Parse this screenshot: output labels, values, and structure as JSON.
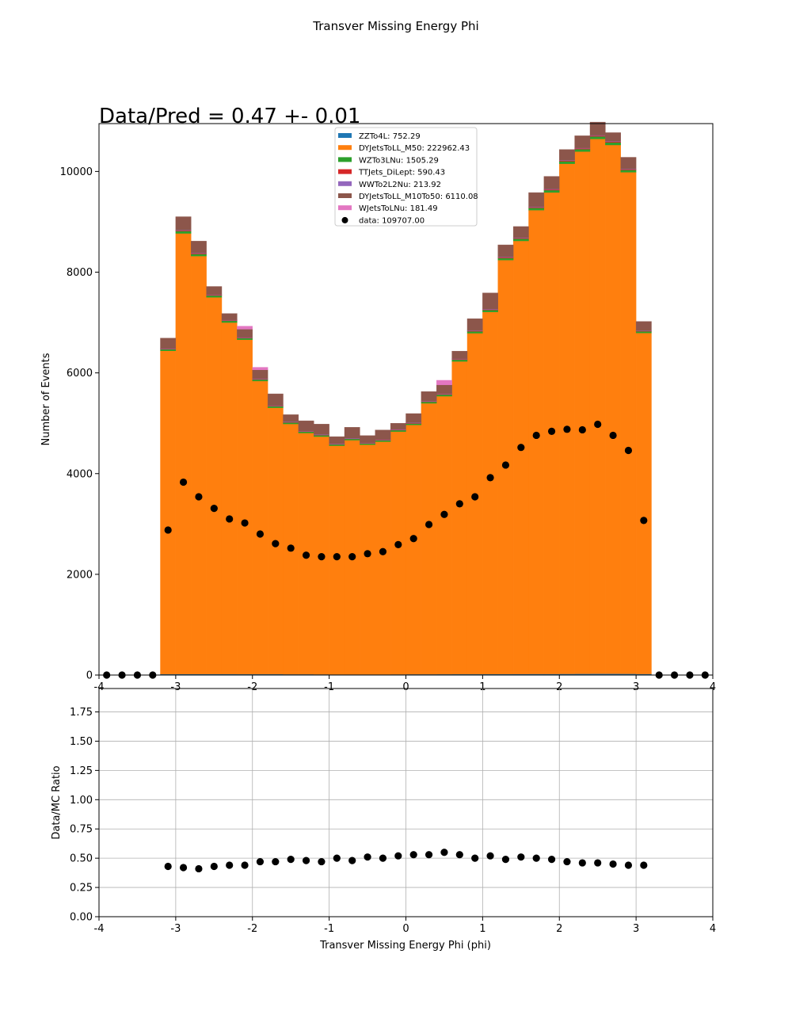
{
  "suptitle": "Transver Missing Energy Phi",
  "colors": {
    "ZZTo4L": "#1f77b4",
    "DYJetsToLL_M50": "#ff7f0e",
    "WZTo3LNu": "#2ca02c",
    "TTJets_DiLept": "#d62728",
    "WWTo2L2Nu": "#9467bd",
    "DYJetsToLL_M10To50": "#8c564b",
    "WJetsToLNu": "#e377c2",
    "data": "#000000",
    "grid": "#b0b0b0"
  },
  "chart_data": [
    {
      "type": "bar",
      "stacked": true,
      "title": "Data/Pred = 0.47 +- 0.01",
      "xlabel": "",
      "ylabel": "Number of Events",
      "xlim": [
        -4,
        4
      ],
      "ylim": [
        0,
        10950
      ],
      "xticks": [
        "-4",
        "-3",
        "-2",
        "-1",
        "0",
        "1",
        "2",
        "3",
        "4"
      ],
      "yticks": [
        "0",
        "2000",
        "4000",
        "6000",
        "8000",
        "10000"
      ],
      "legend_position": "upper center",
      "legend": [
        "ZZTo4L: 752.29",
        "DYJetsToLL_M50: 222962.43",
        "WZTo3LNu: 1505.29",
        "TTJets_DiLept: 590.43",
        "WWTo2L2Nu: 213.92",
        "DYJetsToLL_M10To50: 6110.08",
        "WJetsToLNu: 181.49",
        "data: 109707.00"
      ],
      "bin_edges": [
        -4.0,
        -3.8,
        -3.6,
        -3.4,
        -3.2,
        -3.0,
        -2.8,
        -2.6,
        -2.4,
        -2.2,
        -2.0,
        -1.8,
        -1.6,
        -1.4,
        -1.2,
        -1.0,
        -0.8,
        -0.6,
        -0.4,
        -0.2,
        0.0,
        0.2,
        0.4,
        0.6,
        0.8,
        1.0,
        1.2,
        1.4,
        1.6,
        1.8,
        2.0,
        2.2,
        2.4,
        2.6,
        2.8,
        3.0,
        3.2,
        3.4,
        3.6,
        3.8,
        4.0
      ],
      "series": [
        {
          "name": "ZZTo4L",
          "values": [
            0,
            0,
            0,
            0,
            18,
            20,
            20,
            20,
            20,
            18,
            18,
            18,
            16,
            16,
            15,
            14,
            14,
            14,
            14,
            15,
            16,
            16,
            17,
            18,
            18,
            19,
            20,
            21,
            22,
            22,
            23,
            24,
            25,
            25,
            24,
            22,
            0,
            0,
            0,
            0
          ]
        },
        {
          "name": "DYJetsToLL_M50",
          "values": [
            0,
            0,
            0,
            0,
            6420,
            8750,
            8300,
            7480,
            6980,
            6640,
            5820,
            5290,
            4970,
            4790,
            4720,
            4540,
            4650,
            4560,
            4620,
            4820,
            4950,
            5380,
            5520,
            6210,
            6770,
            7190,
            8220,
            8600,
            9210,
            9560,
            10130,
            10370,
            10620,
            10500,
            9960,
            6770,
            0,
            0,
            0,
            0
          ]
        },
        {
          "name": "WZTo3LNu",
          "values": [
            0,
            0,
            0,
            0,
            30,
            45,
            40,
            36,
            34,
            32,
            30,
            28,
            27,
            26,
            26,
            25,
            25,
            25,
            26,
            27,
            28,
            30,
            32,
            34,
            36,
            38,
            40,
            42,
            44,
            46,
            48,
            49,
            50,
            50,
            45,
            32,
            0,
            0,
            0,
            0
          ]
        },
        {
          "name": "TTJets_DiLept",
          "values": [
            0,
            0,
            0,
            0,
            12,
            15,
            15,
            14,
            14,
            13,
            13,
            13,
            12,
            12,
            12,
            11,
            11,
            11,
            12,
            12,
            13,
            13,
            14,
            14,
            15,
            15,
            16,
            16,
            17,
            17,
            17,
            18,
            18,
            18,
            16,
            12,
            0,
            0,
            0,
            0
          ]
        },
        {
          "name": "WWTo2L2Nu",
          "values": [
            0,
            0,
            0,
            0,
            5,
            6,
            6,
            6,
            5,
            5,
            5,
            5,
            5,
            5,
            4,
            4,
            4,
            4,
            4,
            5,
            5,
            5,
            5,
            6,
            6,
            6,
            6,
            7,
            7,
            7,
            7,
            7,
            7,
            7,
            6,
            5,
            0,
            0,
            0,
            0
          ]
        },
        {
          "name": "DYJetsToLL_M10To50",
          "values": [
            0,
            0,
            0,
            0,
            205,
            265,
            235,
            160,
            125,
            160,
            175,
            230,
            140,
            200,
            205,
            140,
            215,
            140,
            190,
            120,
            180,
            185,
            175,
            150,
            230,
            320,
            240,
            220,
            280,
            250,
            210,
            240,
            260,
            170,
            230,
            180,
            0,
            0,
            0,
            0
          ]
        },
        {
          "name": "WJetsToLNu",
          "values": [
            0,
            0,
            0,
            0,
            0,
            0,
            0,
            0,
            0,
            60,
            50,
            0,
            0,
            0,
            0,
            0,
            0,
            0,
            0,
            0,
            0,
            0,
            90,
            0,
            0,
            0,
            0,
            0,
            0,
            0,
            0,
            0,
            0,
            0,
            0,
            0,
            0,
            0,
            0,
            0
          ]
        }
      ],
      "data_points": {
        "name": "data",
        "x": [
          -3.9,
          -3.7,
          -3.5,
          -3.3,
          -3.1,
          -2.9,
          -2.7,
          -2.5,
          -2.3,
          -2.1,
          -1.9,
          -1.7,
          -1.5,
          -1.3,
          -1.1,
          -0.9,
          -0.7,
          -0.5,
          -0.3,
          -0.1,
          0.1,
          0.3,
          0.5,
          0.7,
          0.9,
          1.1,
          1.3,
          1.5,
          1.7,
          1.9,
          2.1,
          2.3,
          2.5,
          2.7,
          2.9,
          3.1,
          3.3,
          3.5,
          3.7,
          3.9
        ],
        "y": [
          0,
          0,
          0,
          0,
          2880,
          3830,
          3540,
          3310,
          3100,
          3020,
          2800,
          2610,
          2520,
          2380,
          2350,
          2350,
          2350,
          2410,
          2450,
          2590,
          2710,
          2990,
          3190,
          3400,
          3540,
          3920,
          4170,
          4520,
          4760,
          4840,
          4880,
          4870,
          4980,
          4760,
          4460,
          3070,
          0,
          0,
          0,
          0
        ]
      }
    },
    {
      "type": "scatter",
      "title": "",
      "xlabel": "Transver Missing Energy Phi (phi)",
      "ylabel": "Data/MC Ratio",
      "xlim": [
        -4,
        4
      ],
      "ylim": [
        0,
        1.95
      ],
      "grid": true,
      "xticks": [
        "-4",
        "-3",
        "-2",
        "-1",
        "0",
        "1",
        "2",
        "3",
        "4"
      ],
      "yticks": [
        "0.00",
        "0.25",
        "0.50",
        "0.75",
        "1.00",
        "1.25",
        "1.50",
        "1.75"
      ],
      "x": [
        -3.1,
        -2.9,
        -2.7,
        -2.5,
        -2.3,
        -2.1,
        -1.9,
        -1.7,
        -1.5,
        -1.3,
        -1.1,
        -0.9,
        -0.7,
        -0.5,
        -0.3,
        -0.1,
        0.1,
        0.3,
        0.5,
        0.7,
        0.9,
        1.1,
        1.3,
        1.5,
        1.7,
        1.9,
        2.1,
        2.3,
        2.5,
        2.7,
        2.9,
        3.1
      ],
      "y": [
        0.43,
        0.42,
        0.41,
        0.43,
        0.44,
        0.44,
        0.47,
        0.47,
        0.49,
        0.48,
        0.47,
        0.5,
        0.48,
        0.51,
        0.5,
        0.52,
        0.53,
        0.53,
        0.55,
        0.53,
        0.5,
        0.52,
        0.49,
        0.51,
        0.5,
        0.49,
        0.47,
        0.46,
        0.46,
        0.45,
        0.44,
        0.44
      ]
    }
  ]
}
